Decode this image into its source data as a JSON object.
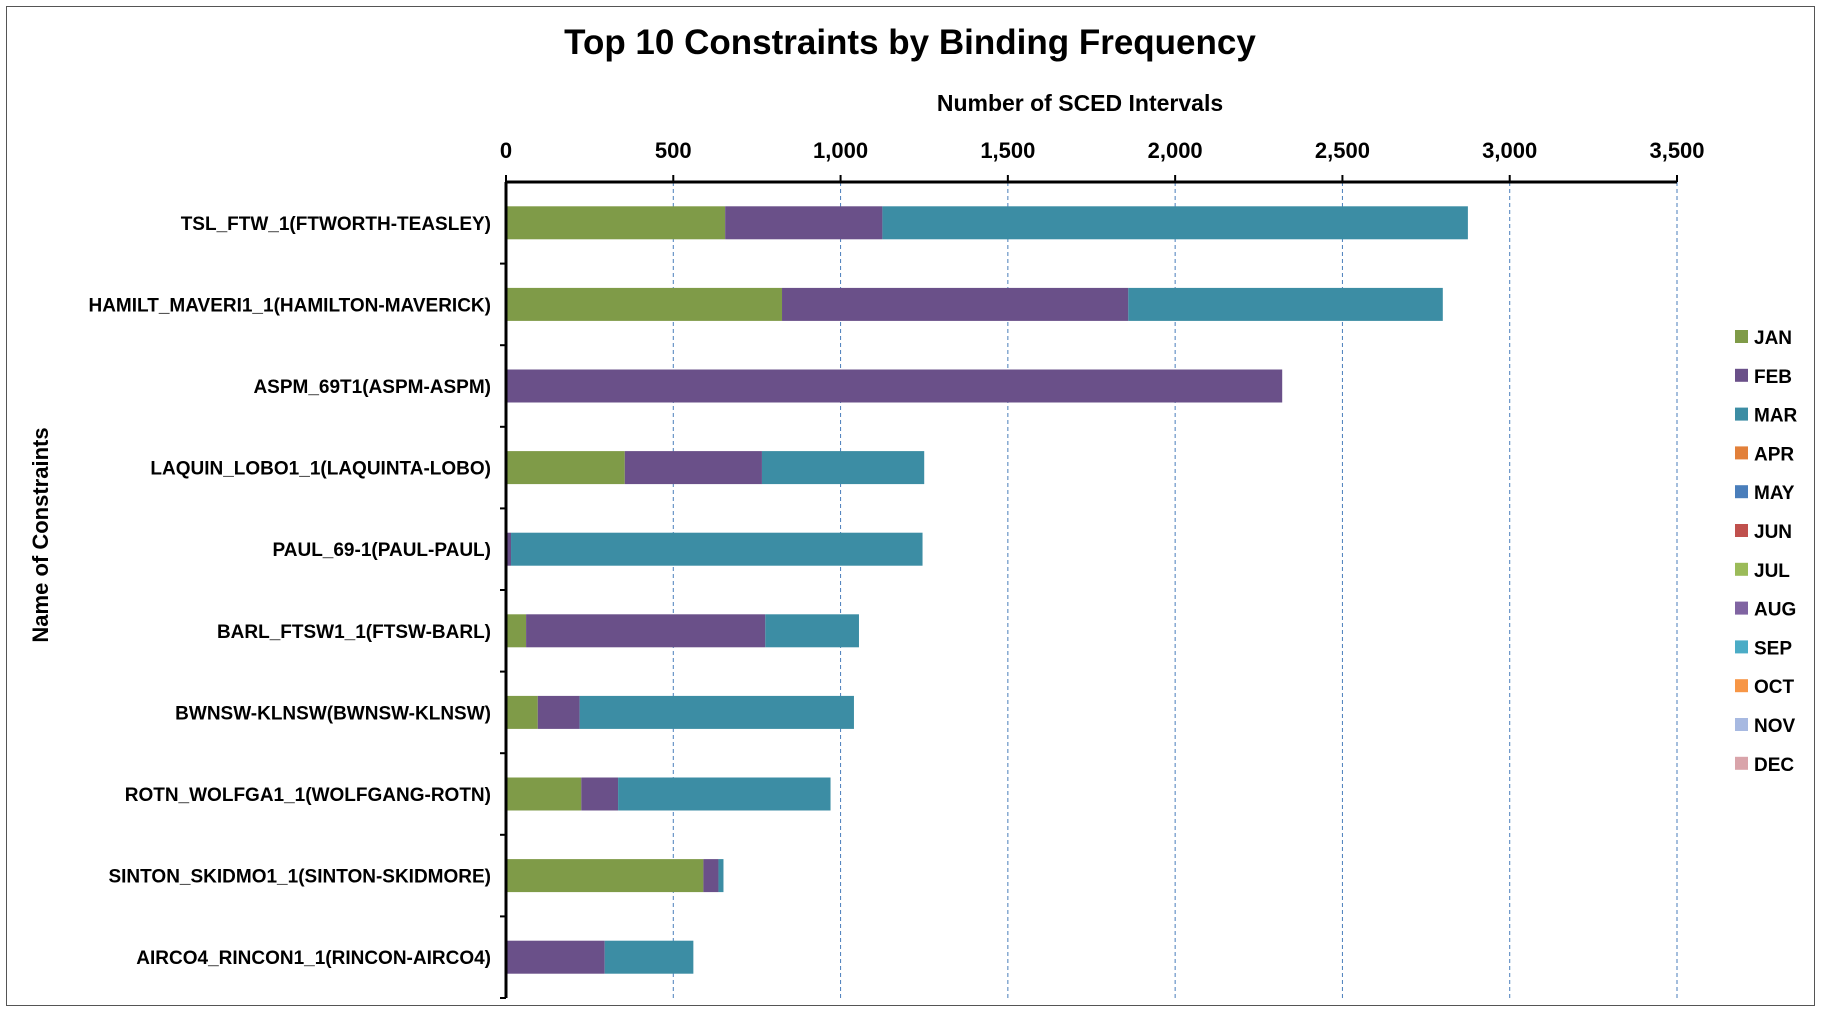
{
  "chart_data": {
    "type": "bar",
    "orientation": "horizontal",
    "stacked": true,
    "title": "Top 10 Constraints by Binding Frequency",
    "xlabel": "Number of SCED Intervals",
    "ylabel": "Name of Constraints",
    "xlim": [
      0,
      3500
    ],
    "x_ticks": [
      0,
      500,
      1000,
      1500,
      2000,
      2500,
      3000,
      3500
    ],
    "x_tick_labels": [
      "0",
      "500",
      "1,000",
      "1,500",
      "2,000",
      "2,500",
      "3,000",
      "3,500"
    ],
    "x_axis_position": "top",
    "grid": "vertical dashed",
    "legend_position": "right",
    "categories": [
      "TSL_FTW_1(FTWORTH-TEASLEY)",
      "HAMILT_MAVERI1_1(HAMILTON-MAVERICK)",
      "ASPM_69T1(ASPM-ASPM)",
      "LAQUIN_LOBO1_1(LAQUINTA-LOBO)",
      "PAUL_69-1(PAUL-PAUL)",
      "BARL_FTSW1_1(FTSW-BARL)",
      "BWNSW-KLNSW(BWNSW-KLNSW)",
      "ROTN_WOLFGA1_1(WOLFGANG-ROTN)",
      "SINTON_SKIDMO1_1(SINTON-SKIDMORE)",
      "AIRCO4_RINCON1_1(RINCON-AIRCO4)"
    ],
    "series": [
      {
        "name": "JAN",
        "color": "#7f9b48",
        "values": [
          655,
          825,
          0,
          355,
          0,
          60,
          95,
          225,
          590,
          0
        ]
      },
      {
        "name": "FEB",
        "color": "#6a5089",
        "values": [
          470,
          1035,
          2320,
          410,
          15,
          715,
          125,
          110,
          45,
          295
        ]
      },
      {
        "name": "MAR",
        "color": "#3c8da4",
        "values": [
          1750,
          940,
          0,
          485,
          1230,
          280,
          820,
          635,
          15,
          265
        ]
      },
      {
        "name": "APR",
        "color": "#e2803a",
        "values": [
          0,
          0,
          0,
          0,
          0,
          0,
          0,
          0,
          0,
          0
        ]
      },
      {
        "name": "MAY",
        "color": "#4a7ebb",
        "values": [
          0,
          0,
          0,
          0,
          0,
          0,
          0,
          0,
          0,
          0
        ]
      },
      {
        "name": "JUN",
        "color": "#c0504d",
        "values": [
          0,
          0,
          0,
          0,
          0,
          0,
          0,
          0,
          0,
          0
        ]
      },
      {
        "name": "JUL",
        "color": "#9bbb59",
        "values": [
          0,
          0,
          0,
          0,
          0,
          0,
          0,
          0,
          0,
          0
        ]
      },
      {
        "name": "AUG",
        "color": "#8064a2",
        "values": [
          0,
          0,
          0,
          0,
          0,
          0,
          0,
          0,
          0,
          0
        ]
      },
      {
        "name": "SEP",
        "color": "#4bacc6",
        "values": [
          0,
          0,
          0,
          0,
          0,
          0,
          0,
          0,
          0,
          0
        ]
      },
      {
        "name": "OCT",
        "color": "#f79646",
        "values": [
          0,
          0,
          0,
          0,
          0,
          0,
          0,
          0,
          0,
          0
        ]
      },
      {
        "name": "NOV",
        "color": "#a7b9e1",
        "values": [
          0,
          0,
          0,
          0,
          0,
          0,
          0,
          0,
          0,
          0
        ]
      },
      {
        "name": "DEC",
        "color": "#d9a4aa",
        "values": [
          0,
          0,
          0,
          0,
          0,
          0,
          0,
          0,
          0,
          0
        ]
      }
    ]
  }
}
